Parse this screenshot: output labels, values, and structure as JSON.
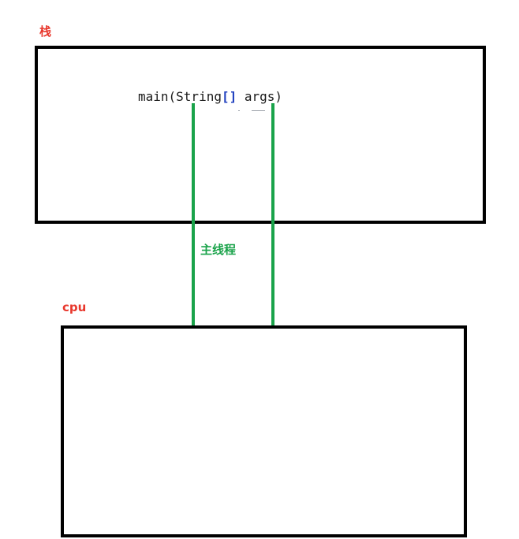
{
  "diagram": {
    "stack_label": "栈",
    "cpu_label": "cpu",
    "thread_label": "主线程",
    "code": {
      "before": "main(String",
      "brackets": "[]",
      "after": " args)"
    },
    "colors": {
      "label_red": "#e8372c",
      "thread_green": "#1aa34a",
      "box_border": "#000000",
      "bracket_blue": "#1f3fbf"
    }
  }
}
